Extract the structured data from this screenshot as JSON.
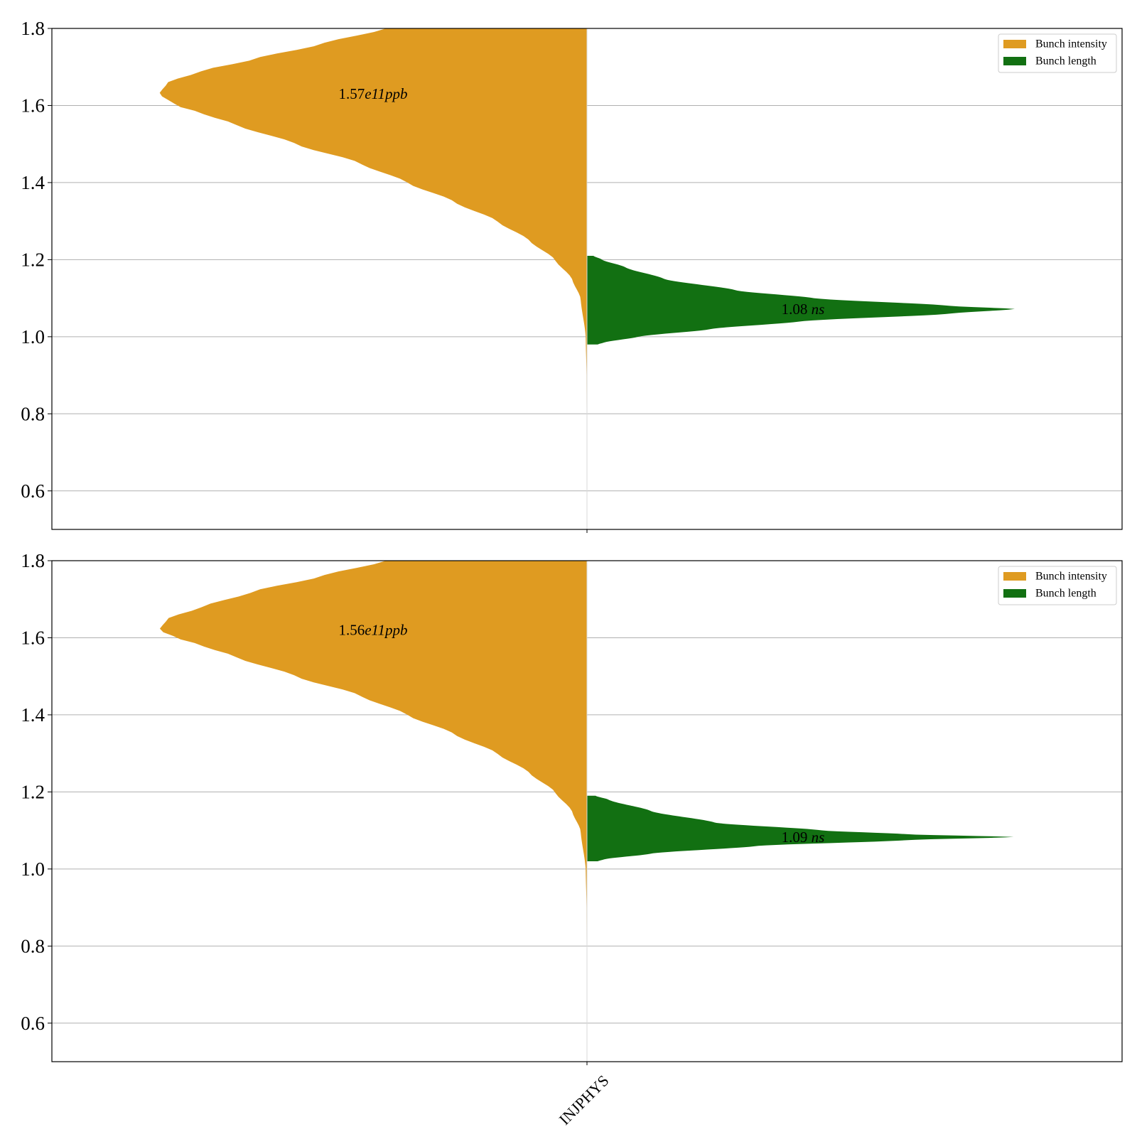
{
  "colors": {
    "bunch_intensity": "#df9b21",
    "bunch_length": "#127012",
    "grid": "#b0b0b0",
    "axes": "#000000"
  },
  "chart_data": [
    {
      "type": "violin",
      "panel": "top",
      "categories": [
        "INJPHYS"
      ],
      "ylim": [
        0.5,
        1.8
      ],
      "yticks": [
        "0.6",
        "0.8",
        "1.0",
        "1.2",
        "1.4",
        "1.6",
        "1.8"
      ],
      "grid": "horizontal",
      "legend": {
        "placement": "top-right",
        "entries": [
          "Bunch intensity",
          "Bunch length"
        ]
      },
      "series": [
        {
          "name": "Bunch intensity",
          "side": "left",
          "y_range": [
            0.5,
            1.8
          ],
          "peak_y": 1.63,
          "annotation": {
            "value": "1.57",
            "exp": "e11",
            "unit": "ppb"
          },
          "profile": [
            [
              0.5,
              0
            ],
            [
              0.9,
              0.001
            ],
            [
              1.0,
              0.003
            ],
            [
              1.1,
              0.015
            ],
            [
              1.15,
              0.035
            ],
            [
              1.2,
              0.075
            ],
            [
              1.25,
              0.135
            ],
            [
              1.3,
              0.21
            ],
            [
              1.35,
              0.31
            ],
            [
              1.4,
              0.42
            ],
            [
              1.45,
              0.53
            ],
            [
              1.5,
              0.68
            ],
            [
              1.55,
              0.82
            ],
            [
              1.58,
              0.9
            ],
            [
              1.6,
              0.96
            ],
            [
              1.63,
              1.0
            ],
            [
              1.66,
              0.98
            ],
            [
              1.69,
              0.9
            ],
            [
              1.72,
              0.78
            ],
            [
              1.76,
              0.62
            ],
            [
              1.8,
              0.47
            ]
          ]
        },
        {
          "name": "Bunch length",
          "side": "right",
          "y_range": [
            0.98,
            1.21
          ],
          "peak_y": 1.072,
          "annotation": {
            "value": "1.08",
            "unit": "ns"
          },
          "profile": [
            [
              0.98,
              0.025
            ],
            [
              0.985,
              0.04
            ],
            [
              1.0,
              0.12
            ],
            [
              1.02,
              0.29
            ],
            [
              1.04,
              0.5
            ],
            [
              1.06,
              0.85
            ],
            [
              1.072,
              1.0
            ],
            [
              1.08,
              0.85
            ],
            [
              1.1,
              0.53
            ],
            [
              1.12,
              0.35
            ],
            [
              1.15,
              0.18
            ],
            [
              1.18,
              0.09
            ],
            [
              1.2,
              0.035
            ],
            [
              1.21,
              0.015
            ]
          ]
        }
      ]
    },
    {
      "type": "violin",
      "panel": "bottom",
      "categories": [
        "INJPHYS"
      ],
      "ylim": [
        0.5,
        1.8
      ],
      "yticks": [
        "0.6",
        "0.8",
        "1.0",
        "1.2",
        "1.4",
        "1.6",
        "1.8"
      ],
      "grid": "horizontal",
      "xtick_label": "INJPHYS",
      "legend": {
        "placement": "top-right",
        "entries": [
          "Bunch intensity",
          "Bunch length"
        ]
      },
      "series": [
        {
          "name": "Bunch intensity",
          "side": "left",
          "y_range": [
            0.5,
            1.8
          ],
          "peak_y": 1.62,
          "annotation": {
            "value": "1.56",
            "exp": "e11",
            "unit": "ppb"
          },
          "profile": [
            [
              0.5,
              0
            ],
            [
              0.9,
              0.001
            ],
            [
              1.0,
              0.003
            ],
            [
              1.1,
              0.015
            ],
            [
              1.15,
              0.035
            ],
            [
              1.2,
              0.075
            ],
            [
              1.25,
              0.135
            ],
            [
              1.3,
              0.21
            ],
            [
              1.35,
              0.31
            ],
            [
              1.4,
              0.42
            ],
            [
              1.45,
              0.53
            ],
            [
              1.5,
              0.68
            ],
            [
              1.55,
              0.82
            ],
            [
              1.58,
              0.9
            ],
            [
              1.6,
              0.96
            ],
            [
              1.62,
              1.0
            ],
            [
              1.65,
              0.98
            ],
            [
              1.68,
              0.9
            ],
            [
              1.72,
              0.78
            ],
            [
              1.76,
              0.62
            ],
            [
              1.8,
              0.47
            ]
          ]
        },
        {
          "name": "Bunch length",
          "side": "right",
          "y_range": [
            1.02,
            1.19
          ],
          "peak_y": 1.083,
          "annotation": {
            "value": "1.09",
            "unit": "ns"
          },
          "profile": [
            [
              1.02,
              0.025
            ],
            [
              1.025,
              0.04
            ],
            [
              1.04,
              0.15
            ],
            [
              1.06,
              0.4
            ],
            [
              1.075,
              0.75
            ],
            [
              1.083,
              1.0
            ],
            [
              1.09,
              0.75
            ],
            [
              1.1,
              0.55
            ],
            [
              1.12,
              0.3
            ],
            [
              1.15,
              0.15
            ],
            [
              1.18,
              0.05
            ],
            [
              1.19,
              0.02
            ]
          ]
        }
      ]
    }
  ]
}
